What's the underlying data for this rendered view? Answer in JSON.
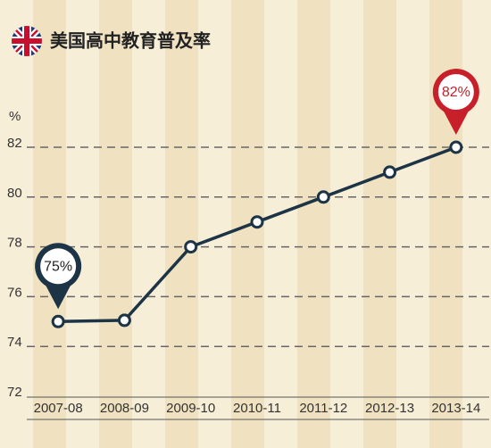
{
  "chart_data": {
    "type": "line",
    "title": "美国高中教育普及率",
    "y_label": "%",
    "categories": [
      "2007-08",
      "2008-09",
      "2009-10",
      "2010-11",
      "2011-12",
      "2012-13",
      "2013-14"
    ],
    "values": [
      75,
      75.05,
      78,
      79,
      80,
      81,
      82
    ],
    "value_labels": [
      "75%",
      null,
      null,
      null,
      null,
      null,
      "82%"
    ],
    "color": "#1c3446",
    "ylim": [
      72,
      82
    ],
    "yticks": [
      72,
      74,
      76,
      78,
      80,
      82
    ],
    "grid": true
  }
}
